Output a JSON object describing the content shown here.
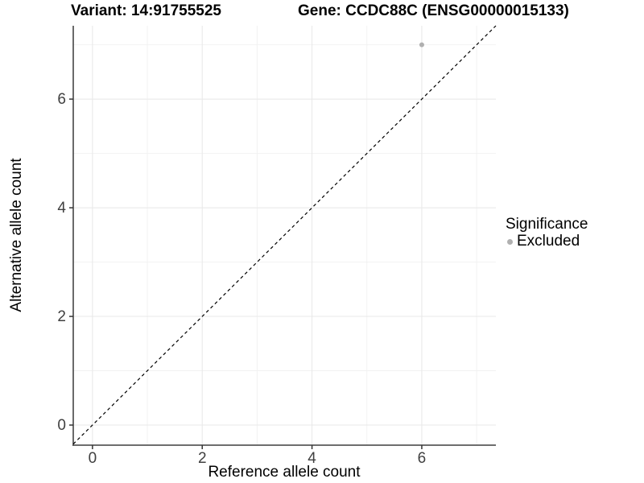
{
  "chart_data": {
    "type": "scatter",
    "title_left": "Variant: 14:91755525",
    "title_right": "Gene: CCDC88C (ENSG00000015133)",
    "xlabel": "Reference allele count",
    "ylabel": "Alternative allele count",
    "xlim": [
      -0.35,
      7.35
    ],
    "ylim": [
      -0.37,
      7.35
    ],
    "x_major_ticks": [
      0,
      2,
      4,
      6
    ],
    "y_major_ticks": [
      0,
      2,
      4,
      6
    ],
    "x_minor_gridlines": [
      1,
      3,
      5,
      7
    ],
    "y_minor_gridlines": [
      1,
      3,
      5,
      7
    ],
    "grid": true,
    "points": [
      {
        "x": 6,
        "y": 7,
        "series": "Excluded"
      }
    ],
    "identity_line": {
      "slope": 1,
      "intercept": 0,
      "style": "dashed",
      "color": "#000000"
    },
    "legend": {
      "title": "Significance",
      "position": "right",
      "items": [
        {
          "label": "Excluded",
          "color": "#b0b0b0"
        }
      ]
    },
    "point_radius": 3,
    "colors": {
      "background": "#ffffff",
      "grid_major": "#e8e8e8",
      "grid_minor": "#f2f2f2",
      "axis_line": "#595959",
      "tick": "#333333",
      "tick_label": "#404040",
      "title": "#000000",
      "point": "#b0b0b0"
    }
  }
}
